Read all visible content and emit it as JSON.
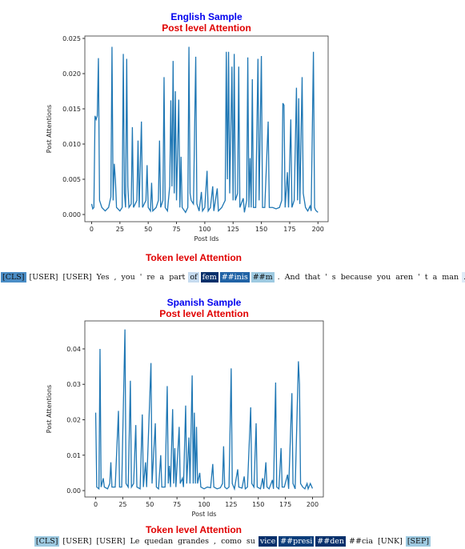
{
  "chart_data": [
    {
      "type": "line",
      "title": "English Sample",
      "subtitle": "Post level Attention",
      "xlabel": "Post Ids",
      "ylabel": "Post Attentions",
      "color": "#1f77b4",
      "xlim": [
        -6,
        209
      ],
      "ylim": [
        -0.00102,
        0.02534
      ],
      "xticks": [
        0,
        25,
        50,
        75,
        100,
        125,
        150,
        175,
        200
      ],
      "yticks": [
        {
          "value": 0,
          "label": "0.000"
        },
        {
          "value": 0.005,
          "label": "0.005"
        },
        {
          "value": 0.01,
          "label": "0.010"
        },
        {
          "value": 0.015,
          "label": "0.015"
        },
        {
          "value": 0.02,
          "label": "0.020"
        },
        {
          "value": 0.025,
          "label": "0.025"
        }
      ],
      "x": [
        0,
        1,
        2,
        3,
        4,
        5,
        6,
        7,
        9,
        12,
        15,
        17,
        18,
        19,
        20,
        21,
        22,
        25,
        27,
        28,
        29,
        30,
        31,
        32,
        33,
        35,
        36,
        37,
        40,
        41,
        42,
        44,
        45,
        48,
        49,
        50,
        52,
        53,
        54,
        57,
        59,
        60,
        61,
        63,
        64,
        65,
        67,
        69,
        70,
        71,
        72,
        73,
        74,
        75,
        77,
        78,
        79,
        80,
        83,
        85,
        86,
        87,
        88,
        90,
        92,
        93,
        95,
        97,
        98,
        100,
        102,
        103,
        105,
        107,
        108,
        111,
        112,
        115,
        118,
        119,
        120,
        121,
        122,
        124,
        125,
        126,
        127,
        129,
        130,
        131,
        134,
        135,
        137,
        138,
        139,
        140,
        141,
        142,
        143,
        145,
        147,
        148,
        150,
        151,
        153,
        156,
        157,
        160,
        163,
        166,
        168,
        169,
        170,
        171,
        173,
        174,
        176,
        177,
        179,
        181,
        182,
        183,
        184,
        186,
        187,
        189,
        191,
        193,
        194,
        196,
        197,
        198,
        200
      ],
      "values": [
        0.0015,
        0.0008,
        0.001,
        0.014,
        0.0135,
        0.014,
        0.0222,
        0.002,
        0.001,
        0.0005,
        0.001,
        0.0025,
        0.0238,
        0.002,
        0.0072,
        0.005,
        0.001,
        0.0005,
        0.001,
        0.0228,
        0.003,
        0.001,
        0.0221,
        0.004,
        0.001,
        0.0015,
        0.0124,
        0.001,
        0.002,
        0.0105,
        0.001,
        0.0132,
        0.001,
        0.002,
        0.007,
        0.001,
        0.0005,
        0.0045,
        0.0005,
        0.001,
        0.002,
        0.0105,
        0.001,
        0.002,
        0.0195,
        0.001,
        0.0005,
        0.004,
        0.0162,
        0.004,
        0.0218,
        0.003,
        0.0175,
        0.002,
        0.0163,
        0.001,
        0.0082,
        0.001,
        0.0003,
        0.001,
        0.0238,
        0.003,
        0.002,
        0.0015,
        0.0224,
        0.0015,
        0.0005,
        0.0032,
        0.0005,
        0.001,
        0.0062,
        0.0005,
        0.001,
        0.004,
        0.0005,
        0.0037,
        0.0005,
        0.001,
        0.002,
        0.0231,
        0.005,
        0.0231,
        0.003,
        0.021,
        0.002,
        0.0228,
        0.002,
        0.003,
        0.021,
        0.001,
        0.0023,
        0.0003,
        0.002,
        0.0223,
        0.001,
        0.008,
        0.001,
        0.0192,
        0.001,
        0.001,
        0.0221,
        0.002,
        0.0225,
        0.001,
        0.001,
        0.0132,
        0.001,
        0.001,
        0.0008,
        0.001,
        0.002,
        0.0158,
        0.0155,
        0.001,
        0.006,
        0.001,
        0.0135,
        0.001,
        0.002,
        0.018,
        0.002,
        0.0165,
        0.0015,
        0.0195,
        0.003,
        0.001,
        0.0005,
        0.0012,
        0.0005,
        0.0231,
        0.001,
        0.0006,
        0.0003
      ]
    },
    {
      "type": "line",
      "title": "Spanish Sample",
      "subtitle": "Post level Attention",
      "xlabel": "Post Ids",
      "ylabel": "Post Attentions",
      "color": "#1f77b4",
      "xlim": [
        -10,
        210
      ],
      "ylim": [
        -0.0018,
        0.0479
      ],
      "xticks": [
        0,
        25,
        50,
        75,
        100,
        125,
        150,
        175,
        200
      ],
      "yticks": [
        {
          "value": 0,
          "label": "0.00"
        },
        {
          "value": 0.01,
          "label": "0.01"
        },
        {
          "value": 0.02,
          "label": "0.02"
        },
        {
          "value": 0.03,
          "label": "0.03"
        },
        {
          "value": 0.04,
          "label": "0.04"
        }
      ],
      "x": [
        0,
        1,
        3,
        4,
        5,
        7,
        8,
        11,
        13,
        14,
        15,
        18,
        21,
        22,
        24,
        27,
        28,
        30,
        32,
        33,
        35,
        37,
        38,
        41,
        43,
        44,
        46,
        47,
        51,
        52,
        55,
        56,
        58,
        60,
        61,
        64,
        66,
        67,
        68,
        69,
        71,
        72,
        73,
        74,
        77,
        78,
        80,
        81,
        83,
        84,
        86,
        87,
        89,
        90,
        91,
        92,
        93,
        94,
        96,
        97,
        100,
        103,
        106,
        108,
        109,
        112,
        115,
        117,
        118,
        119,
        121,
        123,
        125,
        126,
        128,
        131,
        132,
        135,
        137,
        138,
        140,
        143,
        144,
        146,
        148,
        149,
        152,
        154,
        155,
        157,
        158,
        160,
        163,
        164,
        166,
        167,
        169,
        171,
        172,
        174,
        177,
        178,
        181,
        182,
        184,
        187,
        188,
        189,
        191,
        193,
        195,
        196,
        198,
        200
      ],
      "values": [
        0.022,
        0.001,
        0.0005,
        0.04,
        0.001,
        0.0035,
        0.001,
        0.0005,
        0.002,
        0.008,
        0.001,
        0.001,
        0.0225,
        0.001,
        0.001,
        0.0455,
        0.002,
        0.001,
        0.031,
        0.001,
        0.002,
        0.0185,
        0.001,
        0.0005,
        0.0215,
        0.001,
        0.008,
        0.001,
        0.036,
        0.002,
        0.019,
        0.001,
        0.0005,
        0.01,
        0.001,
        0.001,
        0.0295,
        0.002,
        0.007,
        0.001,
        0.023,
        0.002,
        0.012,
        0.001,
        0.018,
        0.002,
        0.0035,
        0.001,
        0.024,
        0.002,
        0.015,
        0.002,
        0.0325,
        0.002,
        0.022,
        0.002,
        0.018,
        0.002,
        0.005,
        0.001,
        0.0005,
        0.001,
        0.0008,
        0.0075,
        0.001,
        0.0005,
        0.0008,
        0.002,
        0.0125,
        0.001,
        0.0005,
        0.001,
        0.0345,
        0.002,
        0.0005,
        0.006,
        0.001,
        0.0007,
        0.004,
        0.0005,
        0.001,
        0.0235,
        0.002,
        0.001,
        0.019,
        0.001,
        0.0005,
        0.0035,
        0.0005,
        0.008,
        0.001,
        0.0005,
        0.003,
        0.0005,
        0.0305,
        0.001,
        0.0005,
        0.012,
        0.001,
        0.001,
        0.0045,
        0.0005,
        0.0275,
        0.002,
        0.0005,
        0.0365,
        0.03,
        0.002,
        0.001,
        0.0005,
        0.002,
        0.0005,
        0.002,
        0.0006
      ]
    }
  ],
  "token_panels": [
    {
      "heading": "Token level Attention",
      "tokens": [
        {
          "text": "[CLS]",
          "color": "#4a8dc6"
        },
        {
          "text": "[USER]"
        },
        {
          "text": "[USER]"
        },
        {
          "text": "Yes"
        },
        {
          "text": ","
        },
        {
          "text": "you"
        },
        {
          "text": "'"
        },
        {
          "text": "re"
        },
        {
          "text": "a"
        },
        {
          "text": "part"
        },
        {
          "text": "of",
          "color": "#c6dbef"
        },
        {
          "text": "fem",
          "color": "#08306b"
        },
        {
          "text": "##inis",
          "color": "#2163a6"
        },
        {
          "text": "##m",
          "color": "#9ecae1"
        },
        {
          "text": "."
        },
        {
          "text": "And"
        },
        {
          "text": "that"
        },
        {
          "text": "'"
        },
        {
          "text": "s"
        },
        {
          "text": "because"
        },
        {
          "text": "you"
        },
        {
          "text": "aren"
        },
        {
          "text": "'"
        },
        {
          "text": "t"
        },
        {
          "text": "a"
        },
        {
          "text": "man"
        },
        {
          "text": ".",
          "color": "#deebf7"
        }
      ]
    },
    {
      "heading": "Token level Attention",
      "tokens": [
        {
          "text": "[CLS]",
          "color": "#9ecae1"
        },
        {
          "text": "[USER]"
        },
        {
          "text": "[USER]"
        },
        {
          "text": "Le"
        },
        {
          "text": "quedan"
        },
        {
          "text": "grandes"
        },
        {
          "text": ","
        },
        {
          "text": "como"
        },
        {
          "text": "su"
        },
        {
          "text": "vice",
          "color": "#08306b"
        },
        {
          "text": "##presi",
          "color": "#0b3d7a"
        },
        {
          "text": "##den",
          "color": "#08306b"
        },
        {
          "text": "##cia"
        },
        {
          "text": "[UNK]"
        },
        {
          "text": "[SEP]",
          "color": "#9ecae1"
        }
      ]
    }
  ]
}
